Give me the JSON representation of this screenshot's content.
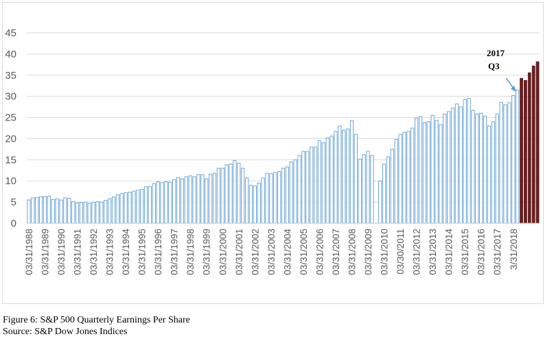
{
  "chart_data": {
    "type": "bar",
    "title": "",
    "xlabel": "",
    "ylabel": "",
    "ylim": [
      0,
      45
    ],
    "yticks": [
      0,
      5,
      10,
      15,
      20,
      25,
      30,
      35,
      40,
      45
    ],
    "grid": "horizontal",
    "legend": "none",
    "x_tick_labels": [
      "03/31/1988",
      "03/31/1989",
      "03/31/1990",
      "03/31/1991",
      "03/31/1992",
      "03/31/1993",
      "03/31/1994",
      "03/31/1995",
      "03/31/1996",
      "03/31/1997",
      "03/31/1998",
      "03/31/1999",
      "03/31/2000",
      "03/31/2001",
      "03/31/2002",
      "03/31/2003",
      "03/31/2004",
      "03/31/2005",
      "03/31/2006",
      "03/31/2007",
      "03/31/2008",
      "03/31/2009",
      "03/31/2010",
      "03/30/2011",
      "03/31/2012",
      "03/31/2013",
      "03/31/2014",
      "03/31/2015",
      "03/31/2016",
      "03/31/2017",
      "3/31/2018"
    ],
    "series": [
      {
        "color": "#9dc3e6",
        "values": [
          5.5,
          6,
          6.1,
          6.3,
          6.3,
          6.4,
          5.6,
          5.8,
          5.5,
          6,
          5.9,
          5.1,
          4.8,
          4.9,
          5,
          4.7,
          4.9,
          5.1,
          5,
          5.4,
          5.8,
          6.2,
          6.7,
          7,
          7.2,
          7.3,
          7.6,
          7.8,
          8,
          8.6,
          8.7,
          9.4,
          9.8,
          9.6,
          9.8,
          9.7,
          10.3,
          10.8,
          10.5,
          11,
          11.2,
          11,
          11.5,
          11.5,
          10.5,
          11.6,
          11.8,
          13,
          13,
          13.8,
          14,
          14.8,
          14.2,
          13,
          10.7,
          9,
          8.8,
          9.5,
          10.7,
          11.8,
          11.7,
          12,
          12.2,
          13,
          13.3,
          14.5,
          15,
          16,
          17,
          17,
          18,
          18,
          19.5,
          19,
          20.2,
          20.6,
          21.7,
          23,
          22,
          22.3,
          24.2,
          21,
          15.2,
          16.2,
          17,
          16,
          0,
          10,
          14,
          15.7,
          17.5,
          19.8,
          21,
          21.5,
          21.7,
          22.5,
          24.8,
          25.2,
          23.8,
          24,
          25.5,
          24.3,
          23.3,
          25.8,
          26.4,
          27.2,
          28.2,
          27.5,
          29.2,
          29.5,
          26.7,
          25.8,
          26,
          25.3,
          23,
          24,
          25.8,
          28.6,
          28,
          28.5,
          30.2,
          31.5
        ]
      },
      {
        "color": "#6b1f1f",
        "values": [
          34.3,
          33.8,
          35.6,
          37.2,
          38.2
        ]
      }
    ],
    "annotations": [
      {
        "text_line1": "2017",
        "text_line2": "Q3"
      }
    ]
  },
  "caption": {
    "line1": "Figure 6: S&P 500 Quarterly Earnings Per Share",
    "line2": "Source: S&P Dow Jones Indices"
  }
}
